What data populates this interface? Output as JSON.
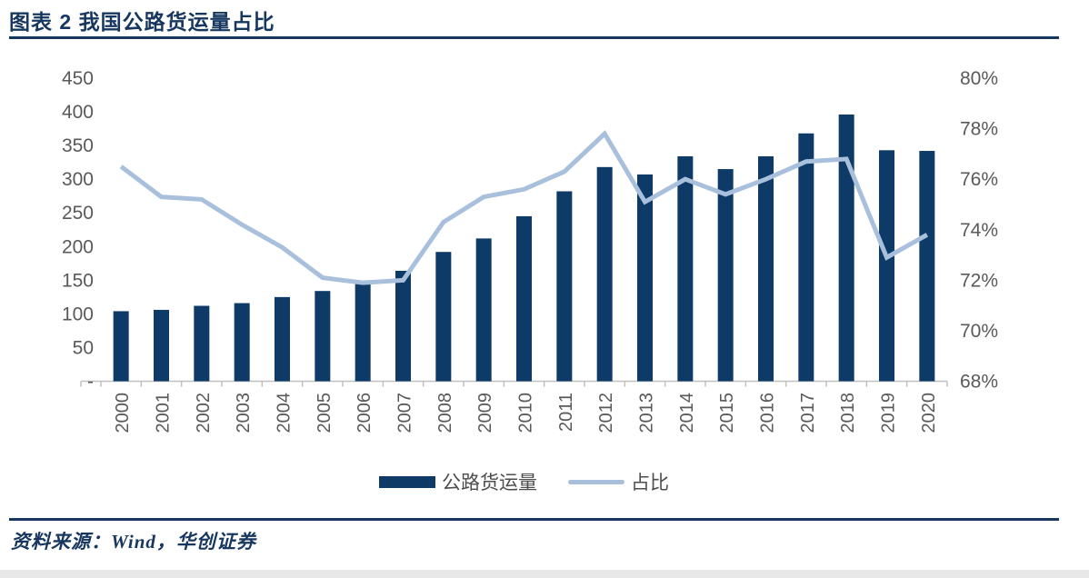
{
  "title": "图表 2  我国公路货运量占比",
  "source": {
    "text": "资料来源：Wind，华创证券"
  },
  "legend": {
    "items": [
      {
        "label": "公路货运量",
        "swatch": "bar"
      },
      {
        "label": "占比",
        "swatch": "line"
      }
    ]
  },
  "colors": {
    "title_navy": "#17375e",
    "bar": "#0e3a68",
    "line": "#a9c0dd",
    "axis_text": "#595959",
    "axis_line": "#c0c0c0",
    "legend_text": "#4d4d4d",
    "bottom_strip": "#e8e8e8"
  },
  "chart_data": {
    "type": "bar+line",
    "title": "我国公路货运量占比",
    "categories": [
      "2000",
      "2001",
      "2002",
      "2003",
      "2004",
      "2005",
      "2006",
      "2007",
      "2008",
      "2009",
      "2010",
      "2011",
      "2012",
      "2013",
      "2014",
      "2015",
      "2016",
      "2017",
      "2018",
      "2019",
      "2020"
    ],
    "series": [
      {
        "name": "公路货运量",
        "type": "bar",
        "axis": "left",
        "values": [
          104,
          106,
          112,
          116,
          125,
          134,
          146,
          164,
          192,
          212,
          245,
          282,
          318,
          307,
          334,
          315,
          334,
          368,
          396,
          343,
          342
        ]
      },
      {
        "name": "占比",
        "type": "line",
        "axis": "right",
        "values": [
          76.5,
          75.3,
          75.2,
          74.2,
          73.3,
          72.1,
          71.9,
          72.0,
          74.3,
          75.3,
          75.6,
          76.3,
          77.8,
          75.1,
          76.0,
          75.4,
          76.0,
          76.7,
          76.8,
          72.9,
          73.8
        ]
      }
    ],
    "left_axis": {
      "min": 0,
      "max": 450,
      "tick_values": [
        450,
        400,
        350,
        300,
        250,
        200,
        150,
        100,
        50,
        0
      ],
      "tick_labels": [
        "450",
        "400",
        "350",
        "300",
        "250",
        "200",
        "150",
        "100",
        "50",
        "-"
      ]
    },
    "right_axis": {
      "min": 68,
      "max": 80,
      "tick_values": [
        80,
        78,
        76,
        74,
        72,
        70,
        68
      ],
      "tick_labels": [
        "80%",
        "78%",
        "76%",
        "74%",
        "72%",
        "70%",
        "68%"
      ]
    },
    "grid": false,
    "legend_position": "bottom"
  }
}
